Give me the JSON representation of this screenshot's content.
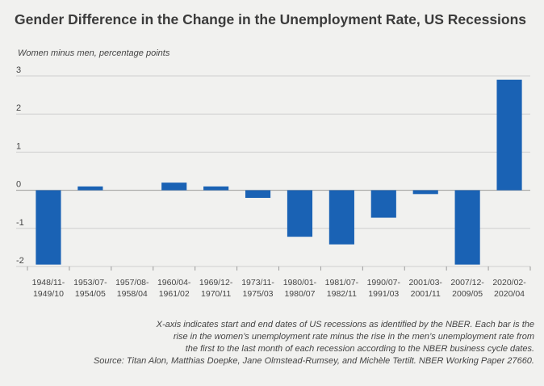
{
  "chart_data": {
    "type": "bar",
    "title": "Gender Difference in the Change in the Unemployment Rate, US Recessions",
    "ylabel": "Women minus men, percentage points",
    "xlabel": "",
    "ylim": [
      -2,
      3
    ],
    "yticks": [
      3,
      2,
      1,
      0,
      -1,
      -2
    ],
    "grid": true,
    "bar_color": "#1a62b4",
    "categories": [
      [
        "1948/11-",
        "1949/10"
      ],
      [
        "1953/07-",
        "1954/05"
      ],
      [
        "1957/08-",
        "1958/04"
      ],
      [
        "1960/04-",
        "1961/02"
      ],
      [
        "1969/12-",
        "1970/11"
      ],
      [
        "1973/11-",
        "1975/03"
      ],
      [
        "1980/01-",
        "1980/07"
      ],
      [
        "1981/07-",
        "1982/11"
      ],
      [
        "1990/07-",
        "1991/03"
      ],
      [
        "2001/03-",
        "2001/11"
      ],
      [
        "2007/12-",
        "2009/05"
      ],
      [
        "2020/02-",
        "2020/04"
      ]
    ],
    "values": [
      -1.95,
      0.1,
      0.0,
      0.2,
      0.1,
      -0.2,
      -1.22,
      -1.42,
      -0.72,
      -0.1,
      -1.95,
      2.9
    ]
  },
  "note": [
    "X-axis indicates start and end dates of US recessions as identified by the NBER. Each bar is the",
    "rise in the  women’s unemployment rate minus the rise in the men’s unemployment rate from",
    "the first to  the last month of each recession according to the NBER business cycle dates.",
    "Source: Titan Alon, Matthias Doepke, Jane Olmstead-Rumsey, and Michèle Tertilt. NBER Working Paper 27660."
  ]
}
